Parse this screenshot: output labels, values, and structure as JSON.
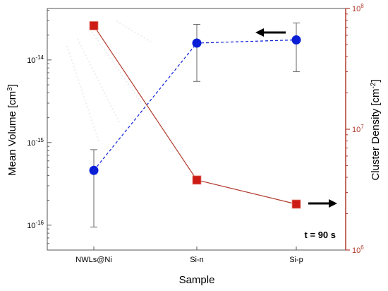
{
  "chart_data": {
    "type": "scatter",
    "xlabel": "Sample",
    "categories": [
      "NWLs@Ni",
      "Si-n",
      "Si-p"
    ],
    "y_left": {
      "label_main": "Mean Volume [cm",
      "label_sup": "3",
      "label_end": "]",
      "scale": "log",
      "range": [
        5e-17,
        4.2e-14
      ],
      "ticks": [
        {
          "value": 1e-16,
          "base": "10",
          "exp": "-16"
        },
        {
          "value": 1e-15,
          "base": "10",
          "exp": "-15"
        },
        {
          "value": 1e-14,
          "base": "10",
          "exp": "-14"
        }
      ]
    },
    "y_right": {
      "label_main": "Cluster Density [cm",
      "label_sup": "-2",
      "label_end": "]",
      "scale": "log",
      "range": [
        1000000.0,
        100000000.0
      ],
      "ticks": [
        {
          "value": 1000000.0,
          "base": "10",
          "exp": "6"
        },
        {
          "value": 10000000.0,
          "base": "10",
          "exp": "7"
        },
        {
          "value": 100000000.0,
          "base": "10",
          "exp": "8"
        }
      ],
      "color": "#b03a2e"
    },
    "series": [
      {
        "name": "Mean Volume",
        "axis": "left",
        "marker": "circle",
        "line": "dashed",
        "color": "#0a1fd6",
        "values": [
          4.6e-16,
          1.6e-14,
          1.75e-14
        ],
        "err_low": [
          9.5e-17,
          5.5e-15,
          7.2e-15
        ],
        "err_high": [
          8.2e-16,
          2.7e-14,
          2.8e-14
        ]
      },
      {
        "name": "Cluster Density",
        "axis": "right",
        "marker": "square",
        "line": "solid",
        "color": "#cc1a14",
        "line_color": "#b03a2e",
        "values": [
          72000000.0,
          3800000.0,
          2400000.0
        ]
      }
    ],
    "annotation": "t = 90 s",
    "grid": false
  }
}
